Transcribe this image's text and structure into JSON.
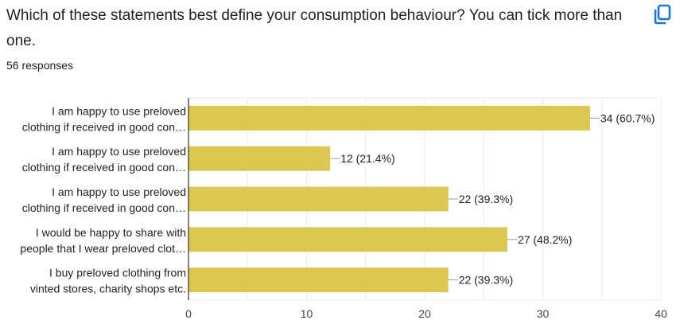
{
  "header": {
    "title": "Which of these statements best define your consumption behaviour? You can tick more than one.",
    "responses": "56 responses",
    "copy_icon": "copy-icon"
  },
  "colors": {
    "bar": "#dcc851",
    "accent": "#1a73e8",
    "grid": "#ebebeb",
    "axis": "#333333"
  },
  "chart_data": {
    "type": "bar",
    "orientation": "horizontal",
    "title": "Which of these statements best define your consumption behaviour? You can tick more than one.",
    "categories": [
      [
        "I am happy to use preloved",
        "clothing if received in good con…"
      ],
      [
        "I am happy to use preloved",
        "clothing if received in good con…"
      ],
      [
        "I am happy to use preloved",
        "clothing if received in good con…"
      ],
      [
        "I would be happy to share with",
        "people that I wear preloved clot…"
      ],
      [
        "I buy preloved clothing from",
        "vinted stores, charity shops etc."
      ]
    ],
    "values": [
      34,
      12,
      22,
      27,
      22
    ],
    "percentages": [
      "60.7%",
      "21.4%",
      "39.3%",
      "48.2%",
      "39.3%"
    ],
    "data_labels": [
      "34 (60.7%)",
      "12 (21.4%)",
      "22 (39.3%)",
      "27 (48.2%)",
      "22 (39.3%)"
    ],
    "xlim": [
      0,
      40
    ],
    "xticks": [
      "0",
      "10",
      "20",
      "30",
      "40"
    ],
    "minor_grid_step": 5,
    "grid": true,
    "legend": "none",
    "xlabel": "",
    "ylabel": ""
  }
}
